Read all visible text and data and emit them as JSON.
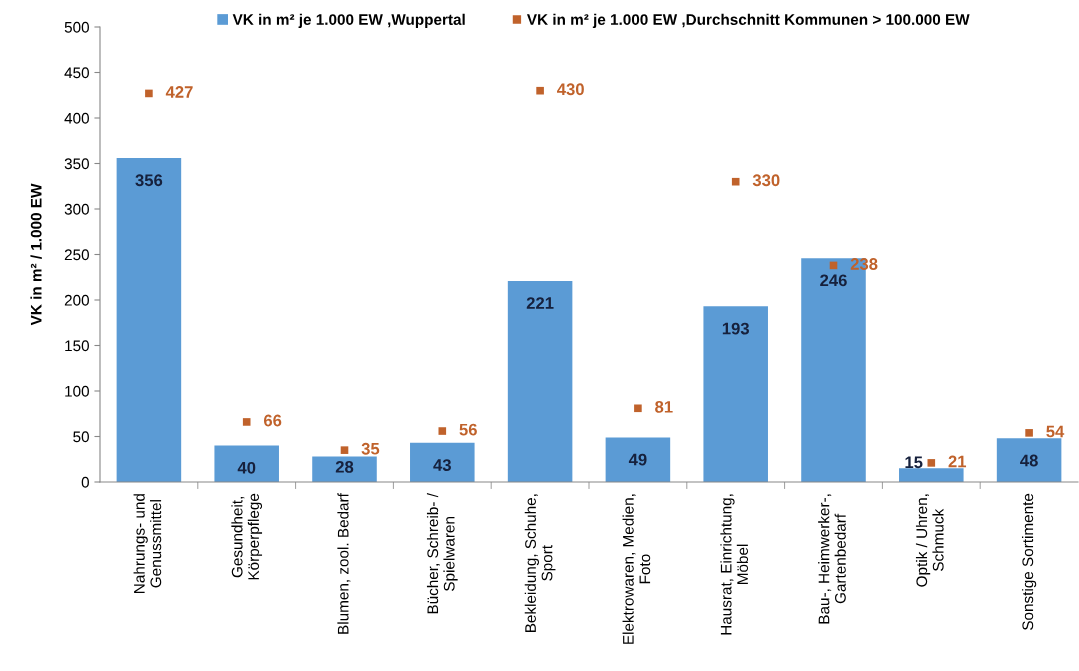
{
  "chart_data": {
    "type": "bar",
    "ylabel": "VK in m² / 1.000 EW",
    "categories": [
      "Nahrungs- und\nGenussmittel",
      "Gesundheit,\nKörperpflege",
      "Blumen, zool. Bedarf",
      "Bücher, Schreib- /\nSpielwaren",
      "Bekleidung, Schuhe,\nSport",
      "Elektrowaren, Medien,\nFoto",
      "Hausrat, Einrichtung,\nMöbel",
      "Bau-, Heimwerker-,\nGartenbedarf",
      "Optik / Uhren,\nSchmuck",
      "Sonstige Sortimente"
    ],
    "series": [
      {
        "name": "VK in m² je 1.000 EW ,Wuppertal",
        "color": "#5b9bd5",
        "values": [
          356,
          40,
          28,
          43,
          221,
          49,
          193,
          246,
          15,
          48
        ]
      },
      {
        "name": "VK in m² je 1.000 EW ,Durchschnitt Kommunen > 100.000 EW",
        "type": "scatter",
        "color": "#c0622b",
        "values": [
          427,
          66,
          35,
          56,
          430,
          81,
          330,
          238,
          21,
          54
        ]
      }
    ],
    "ylim": [
      0,
      500
    ],
    "yticks": [
      0,
      50,
      100,
      150,
      200,
      250,
      300,
      350,
      400,
      450,
      500
    ],
    "marker": "square",
    "data_labels": true,
    "legend": "top",
    "grid": false
  }
}
